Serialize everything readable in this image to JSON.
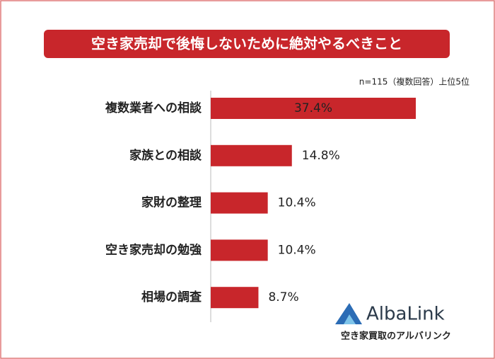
{
  "chart_data": {
    "type": "bar",
    "orientation": "horizontal",
    "title": "空き家売却で後悔しないために絶対やるべきこと",
    "subtitle": "n=115（複数回答）上位5位",
    "categories": [
      "複数業者への相談",
      "家族との相談",
      "家財の整理",
      "空き家売却の勉強",
      "相場の調査"
    ],
    "values": [
      37.4,
      14.8,
      10.4,
      10.4,
      8.7
    ],
    "value_labels": [
      "37.4%",
      "14.8%",
      "10.4%",
      "10.4%",
      "8.7%"
    ],
    "color": "#c8262b"
  },
  "logo": {
    "name": "AlbaLink",
    "tagline": "空き家買取のアルバリンク"
  }
}
